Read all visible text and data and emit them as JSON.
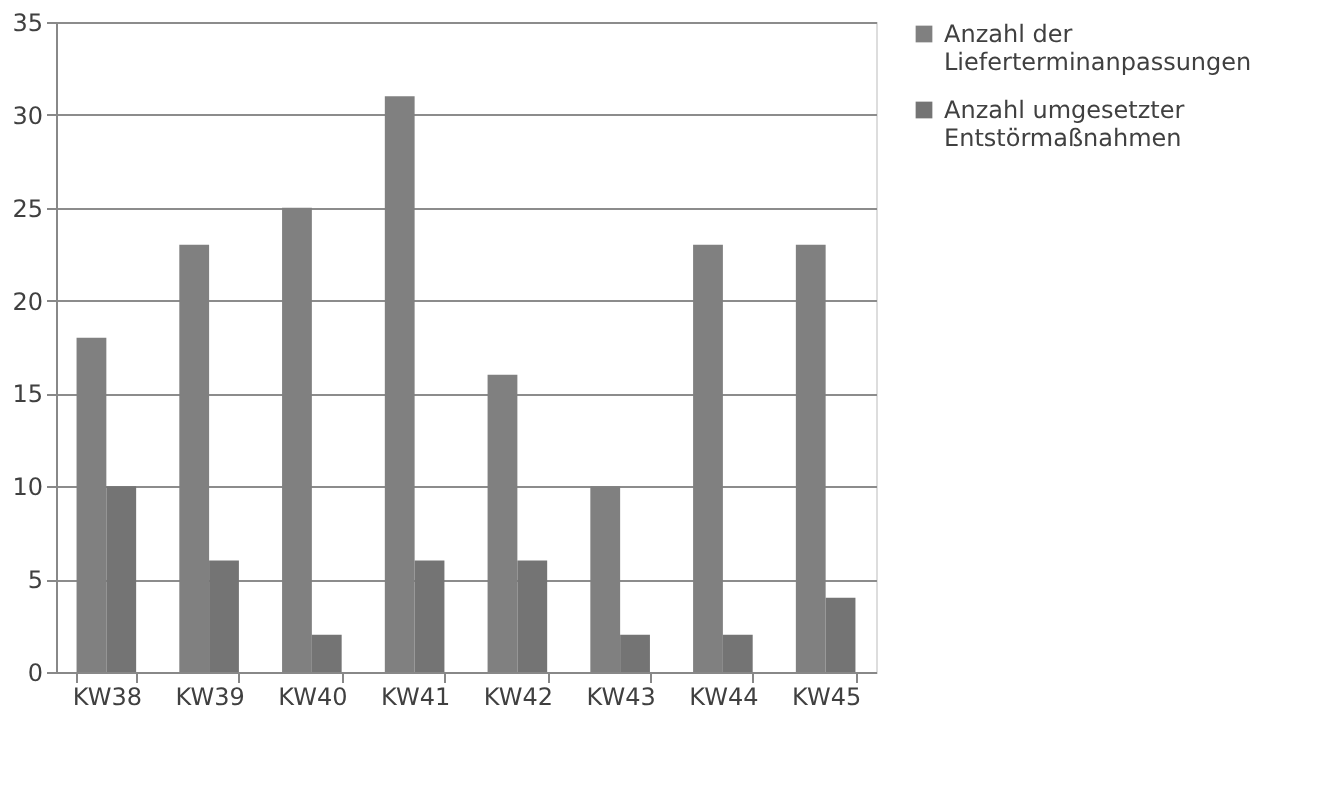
{
  "chart_data": {
    "type": "bar",
    "categories": [
      "KW38",
      "KW39",
      "KW40",
      "KW41",
      "KW42",
      "KW43",
      "KW44",
      "KW45"
    ],
    "series": [
      {
        "name": "Anzahl der Lieferterminanpassungen",
        "color": "#808080",
        "values": [
          18,
          23,
          25,
          31,
          16,
          10,
          23,
          23
        ]
      },
      {
        "name": "Anzahl umgesetzter Entstörmaßnahmen",
        "color": "#747474",
        "values": [
          10,
          6,
          2,
          6,
          6,
          2,
          2,
          4
        ]
      }
    ],
    "ylim": [
      0,
      35
    ],
    "yticks": [
      0,
      5,
      10,
      15,
      20,
      25,
      30,
      35
    ],
    "grid": "y",
    "legend": "right"
  }
}
